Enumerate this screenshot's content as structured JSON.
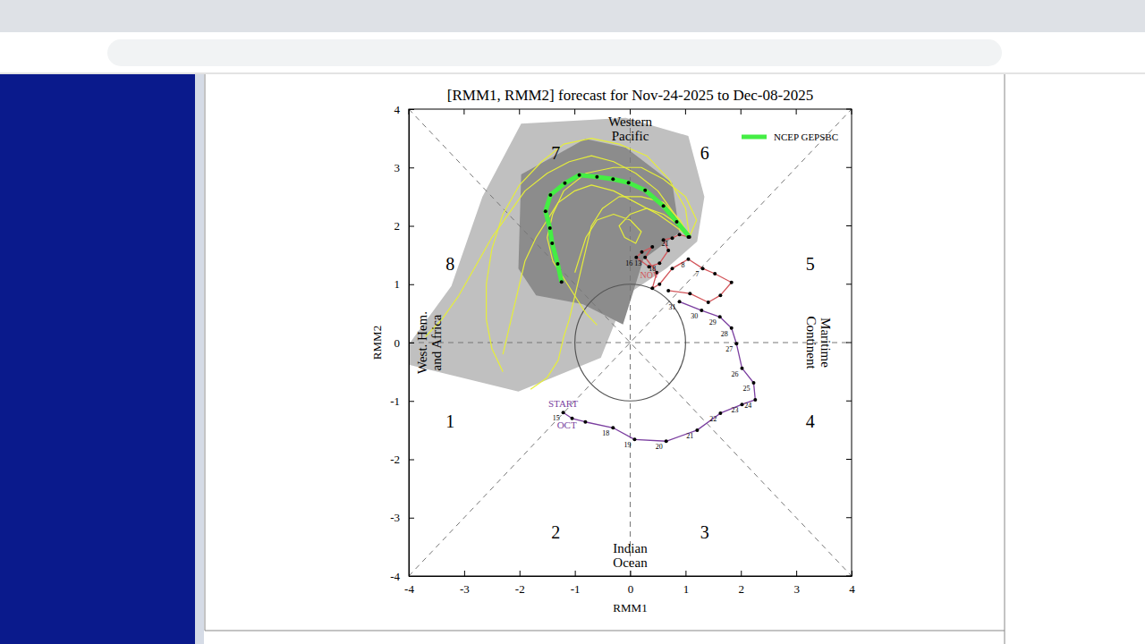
{
  "chart_data": {
    "type": "phase",
    "title": "[RMM1, RMM2] forecast for Nov-24-2025 to Dec-08-2025",
    "x_label": "RMM1",
    "y_label": "RMM2",
    "xlim": [
      -4,
      4
    ],
    "ylim": [
      -4,
      4
    ],
    "xticks": [
      -4,
      -3,
      -2,
      -1,
      0,
      1,
      2,
      3,
      4
    ],
    "yticks": [
      -4,
      -3,
      -2,
      -1,
      0,
      1,
      2,
      3,
      4
    ],
    "circle_radius": 1,
    "phase_labels": [
      1,
      2,
      3,
      4,
      5,
      6,
      7,
      8
    ],
    "region_labels": {
      "top": [
        "Western",
        "Pacific"
      ],
      "bottom": [
        "Indian",
        "Ocean"
      ],
      "left": [
        "West. Hem.",
        "and Africa"
      ],
      "right": [
        "Maritime",
        "Continent"
      ]
    },
    "start_label": "START",
    "legend": "upper right",
    "series": [
      {
        "type": "area",
        "color": "#c0c0c0",
        "x": [
          -1.97,
          -0.08,
          1.05,
          1.34,
          1.21,
          0.65,
          -0.08,
          -0.53,
          -2.02,
          -4.0,
          -4.0,
          -3.23,
          -2.67
        ],
        "values": [
          3.75,
          3.85,
          3.54,
          2.5,
          1.73,
          1.27,
          0.81,
          -0.26,
          -0.84,
          -0.38,
          -0.03,
          0.97,
          2.5
        ]
      },
      {
        "type": "area",
        "color": "#8c8c8c",
        "x": [
          -1.97,
          -0.81,
          -0.08,
          0.76,
          0.89,
          0.24,
          -0.13,
          -0.86,
          -1.7,
          -2.02
        ],
        "values": [
          2.88,
          3.49,
          3.34,
          2.73,
          1.89,
          1.43,
          0.31,
          0.66,
          0.81,
          1.27
        ]
      },
      {
        "type": "line",
        "color": "#e6ee3a",
        "marker": "none",
        "line_style": "solid",
        "x": [
          1.07,
          0.8,
          0.5,
          0.1,
          -0.3,
          -0.7,
          -1.1,
          -1.5,
          -1.9,
          -2.2,
          -2.5,
          -2.8,
          -3.1,
          -3.4,
          -3.7
        ],
        "values": [
          1.81,
          2.2,
          2.6,
          2.9,
          3.1,
          3.2,
          3.1,
          2.9,
          2.6,
          2.2,
          1.8,
          1.3,
          0.8,
          0.4,
          0.1
        ]
      },
      {
        "type": "line",
        "color": "#e6ee3a",
        "marker": "none",
        "line_style": "solid",
        "x": [
          1.07,
          0.9,
          0.6,
          0.2,
          -0.2,
          -0.5,
          -0.7,
          -0.8,
          -0.9,
          -1.0,
          -1.1,
          -1.2,
          -1.3,
          -1.5,
          -1.8
        ],
        "values": [
          1.81,
          2.1,
          2.4,
          2.5,
          2.5,
          2.3,
          2.0,
          1.6,
          1.2,
          0.8,
          0.4,
          0.1,
          -0.3,
          -0.6,
          -0.8
        ]
      },
      {
        "type": "line",
        "color": "#e6ee3a",
        "marker": "none",
        "line_style": "solid",
        "x": [
          1.07,
          0.9,
          0.6,
          0.3,
          0.0,
          -0.2,
          -0.1,
          0.1,
          0.2,
          0.0,
          -0.3,
          -0.6,
          -0.8,
          -0.9,
          -1.0
        ],
        "values": [
          1.81,
          2.0,
          2.2,
          2.3,
          2.2,
          2.0,
          1.8,
          1.7,
          1.9,
          2.1,
          2.2,
          2.1,
          1.8,
          1.5,
          1.2
        ]
      },
      {
        "type": "line",
        "color": "#e6ee3a",
        "marker": "none",
        "line_style": "solid",
        "x": [
          1.07,
          1.0,
          0.7,
          0.3,
          -0.2,
          -0.7,
          -1.2,
          -1.6,
          -2.0,
          -2.3,
          -2.5,
          -2.6,
          -2.6,
          -2.5,
          -2.3
        ],
        "values": [
          1.81,
          2.3,
          2.8,
          3.2,
          3.4,
          3.5,
          3.4,
          3.1,
          2.7,
          2.2,
          1.6,
          1.0,
          0.4,
          -0.1,
          -0.5
        ]
      },
      {
        "type": "line",
        "color": "#e6ee3a",
        "marker": "none",
        "line_style": "solid",
        "x": [
          1.07,
          0.8,
          0.5,
          0.1,
          -0.3,
          -0.7,
          -1.0,
          -1.3,
          -1.5,
          -1.7,
          -1.9,
          -2.0,
          -2.1,
          -2.2,
          -2.3
        ],
        "values": [
          1.81,
          2.0,
          2.2,
          2.4,
          2.6,
          2.7,
          2.6,
          2.4,
          2.1,
          1.8,
          1.4,
          1.0,
          0.6,
          0.2,
          -0.2
        ]
      },
      {
        "type": "line",
        "color": "#e6ee3a",
        "marker": "none",
        "line_style": "solid",
        "x": [
          1.07,
          1.2,
          1.0,
          0.6,
          0.2,
          -0.3,
          -0.8,
          -1.2,
          -1.4,
          -1.5,
          -1.4,
          -1.2,
          -1.0,
          -0.8,
          -0.6
        ],
        "values": [
          1.81,
          2.1,
          2.5,
          2.8,
          3.0,
          3.0,
          2.9,
          2.6,
          2.2,
          1.8,
          1.4,
          1.1,
          0.8,
          0.5,
          0.3
        ]
      },
      {
        "type": "line",
        "color": "#7b3fa0",
        "marker": "circle",
        "line_style": "solid",
        "month_label": "OCT",
        "x": [
          -1.21,
          -1.05,
          -0.81,
          -0.31,
          0.08,
          0.65,
          1.21,
          1.63,
          2.02,
          2.26,
          2.23,
          2.02,
          1.92,
          1.83,
          1.62,
          1.29,
          0.89
        ],
        "values": [
          -1.2,
          -1.3,
          -1.36,
          -1.46,
          -1.66,
          -1.69,
          -1.5,
          -1.21,
          -1.06,
          -0.98,
          -0.69,
          -0.44,
          -0.02,
          0.25,
          0.44,
          0.55,
          0.7
        ],
        "days": [
          15,
          null,
          null,
          18,
          19,
          20,
          21,
          22,
          23,
          24,
          25,
          26,
          27,
          28,
          29,
          30,
          31
        ]
      },
      {
        "type": "line",
        "color": "#d2555a",
        "marker": "circle",
        "line_style": "solid",
        "month_label": "NOV",
        "x": [
          0.69,
          1.08,
          1.41,
          1.63,
          1.83,
          1.53,
          1.31,
          1.05,
          0.76,
          0.53,
          0.4,
          0.48,
          0.27,
          0.4,
          0.21,
          0.11,
          0.34,
          0.53,
          0.69,
          0.6,
          0.76,
          0.89,
          1.05
        ],
        "values": [
          0.89,
          0.84,
          0.69,
          0.81,
          1.03,
          1.18,
          1.27,
          1.43,
          1.27,
          1.0,
          0.93,
          1.2,
          1.46,
          1.64,
          1.55,
          1.46,
          1.3,
          1.36,
          1.58,
          1.76,
          1.79,
          1.85,
          1.81
        ],
        "days": [
          null,
          null,
          null,
          null,
          null,
          null,
          7,
          8,
          null,
          null,
          null,
          null,
          13,
          null,
          null,
          16,
          null,
          18,
          null,
          null,
          21,
          null,
          null
        ]
      },
      {
        "type": "line",
        "name": "NCEP GEPSBC",
        "color": "#44ee44",
        "marker": "circle",
        "line_style": "solid",
        "x": [
          1.07,
          0.84,
          0.6,
          0.27,
          -0.03,
          -0.31,
          -0.6,
          -0.92,
          -1.18,
          -1.44,
          -1.53,
          -1.45,
          -1.41,
          -1.31,
          -1.24
        ],
        "values": [
          1.81,
          2.07,
          2.34,
          2.61,
          2.74,
          2.8,
          2.84,
          2.87,
          2.73,
          2.53,
          2.25,
          1.96,
          1.7,
          1.35,
          1.04
        ]
      }
    ]
  }
}
